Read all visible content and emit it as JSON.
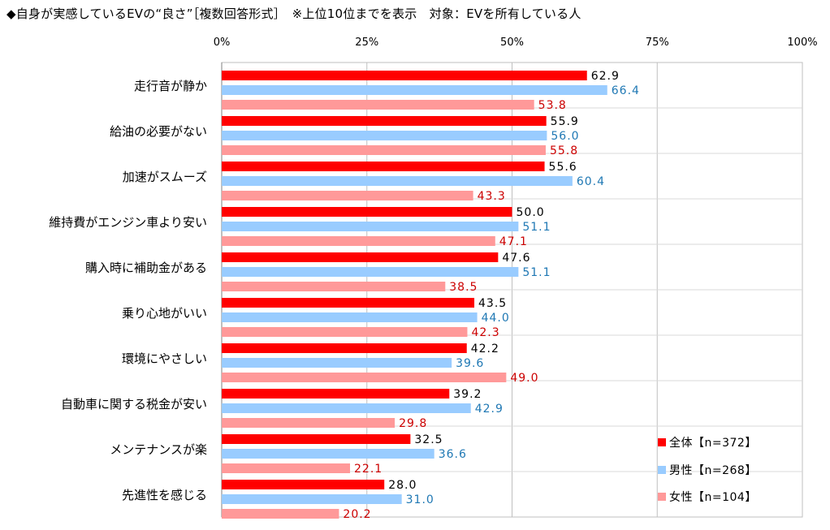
{
  "title": "◆自身が実感しているEVの“良さ”［複数回答形式］　※上位10位までを表示　対象：EVを所有している人",
  "chart_data": {
    "type": "bar",
    "orientation": "horizontal",
    "xlim": [
      0,
      100
    ],
    "xticks": [
      0,
      25,
      50,
      75,
      100
    ],
    "tick_labels": [
      "0%",
      "25%",
      "50%",
      "75%",
      "100%"
    ],
    "grid": true,
    "legend_position": "bottom-right",
    "categories": [
      "走行音が静か",
      "給油の必要がない",
      "加速がスムーズ",
      "維持費がエンジン車より安い",
      "購入時に補助金がある",
      "乗り心地がいい",
      "環境にやさしい",
      "自動車に関する税金が安い",
      "メンテナンスが楽",
      "先進性を感じる"
    ],
    "series": [
      {
        "name": "全体【n=372】",
        "color": "#ff0000",
        "label_color": "#000000",
        "values": [
          62.9,
          55.9,
          55.6,
          50.0,
          47.6,
          43.5,
          42.2,
          39.2,
          32.5,
          28.0
        ]
      },
      {
        "name": "男性【n=268】",
        "color": "#99ccff",
        "label_color": "#1f78b4",
        "values": [
          66.4,
          56.0,
          60.4,
          51.1,
          51.1,
          44.0,
          39.6,
          42.9,
          36.6,
          31.0
        ]
      },
      {
        "name": "女性【n=104】",
        "color": "#ff9999",
        "label_color": "#cc0000",
        "values": [
          53.8,
          55.8,
          43.3,
          47.1,
          38.5,
          42.3,
          49.0,
          29.8,
          22.1,
          20.2
        ]
      }
    ]
  }
}
